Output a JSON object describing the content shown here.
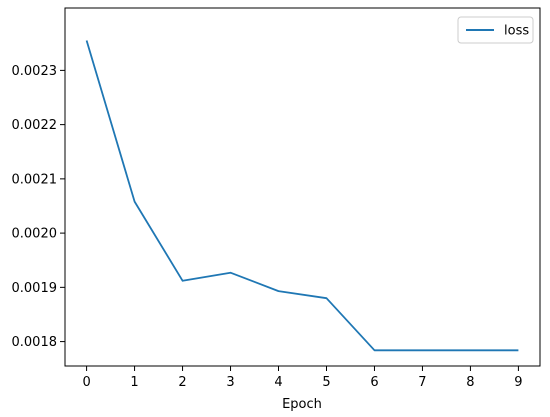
{
  "chart_data": {
    "type": "line",
    "title": "",
    "xlabel": "Epoch",
    "ylabel": "",
    "x": [
      0,
      1,
      2,
      3,
      4,
      5,
      6,
      7,
      8,
      9
    ],
    "x_ticks": [
      "0",
      "1",
      "2",
      "3",
      "4",
      "5",
      "6",
      "7",
      "8",
      "9"
    ],
    "xlim": [
      -0.45,
      9.45
    ],
    "y_ticks": [
      "0.0018",
      "0.0019",
      "0.0020",
      "0.0021",
      "0.0022",
      "0.0023"
    ],
    "ylim": [
      0.001755,
      0.002415
    ],
    "series": [
      {
        "name": "loss",
        "color": "#1f77b4",
        "values": [
          0.002355,
          0.002058,
          0.001912,
          0.001927,
          0.001893,
          0.00188,
          0.001784,
          0.001784,
          0.001784,
          0.001784
        ]
      }
    ],
    "grid": false,
    "legend": "top-right"
  }
}
